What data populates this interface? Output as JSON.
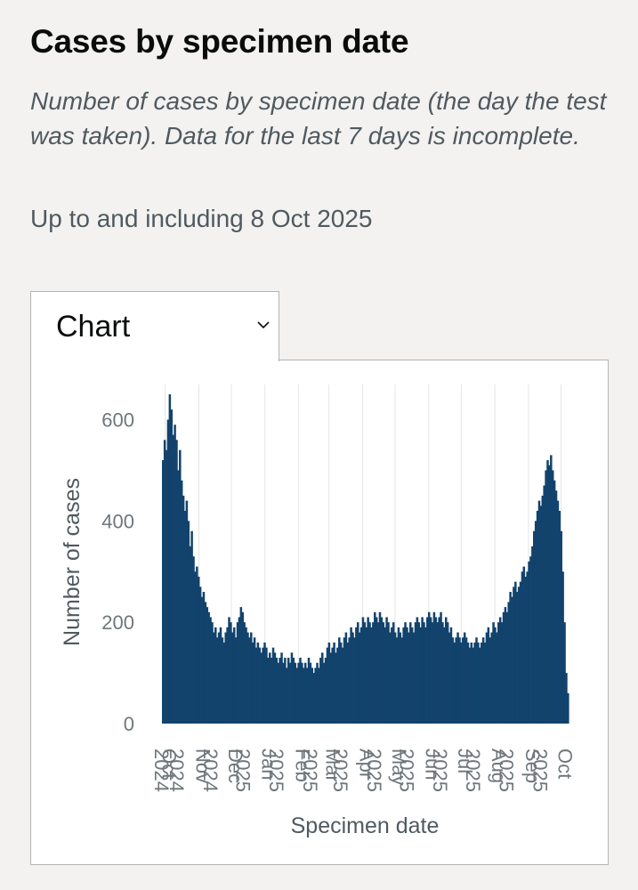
{
  "header": {
    "title": "Cases by specimen date",
    "description": "Number of cases by specimen date (the day the test was taken). Data for the last 7 days is incomplete.",
    "updated": "Up to and including 8 Oct 2025"
  },
  "view_selector": {
    "selected": "Chart",
    "icon": "chevron-down-icon"
  },
  "colors": {
    "bar": "#12436d",
    "grid": "#e5e5e5",
    "tick": "#6f777b"
  },
  "chart_data": {
    "type": "bar",
    "xlabel": "Specimen date",
    "ylabel": "Number of cases",
    "ylim": [
      0,
      680
    ],
    "yticks": [
      0,
      200,
      400,
      600
    ],
    "x_range": [
      "2024-09-28",
      "2025-10-08"
    ],
    "xtick_labels": [
      {
        "date": "2024-09-28",
        "label": "2024"
      },
      {
        "date": "2024-10-05",
        "label": "Oct"
      },
      {
        "date": "2024-10-12",
        "label": "2024"
      },
      {
        "date": "2024-11-05",
        "label": "Nov"
      },
      {
        "date": "2024-11-12",
        "label": "2024"
      },
      {
        "date": "2024-12-05",
        "label": "Dec"
      },
      {
        "date": "2024-12-12",
        "label": "2025"
      },
      {
        "date": "2025-01-05",
        "label": "Jan"
      },
      {
        "date": "2025-01-12",
        "label": "2025"
      },
      {
        "date": "2025-02-05",
        "label": "Feb"
      },
      {
        "date": "2025-02-12",
        "label": "2025"
      },
      {
        "date": "2025-03-05",
        "label": "Mar"
      },
      {
        "date": "2025-03-12",
        "label": "2025"
      },
      {
        "date": "2025-04-05",
        "label": "Apr"
      },
      {
        "date": "2025-04-12",
        "label": "2025"
      },
      {
        "date": "2025-05-05",
        "label": "May"
      },
      {
        "date": "2025-05-12",
        "label": "2025"
      },
      {
        "date": "2025-06-05",
        "label": "Jun"
      },
      {
        "date": "2025-06-12",
        "label": "2025"
      },
      {
        "date": "2025-07-05",
        "label": "Jul"
      },
      {
        "date": "2025-07-12",
        "label": "2025"
      },
      {
        "date": "2025-08-05",
        "label": "Aug"
      },
      {
        "date": "2025-08-12",
        "label": "2025"
      },
      {
        "date": "2025-09-05",
        "label": "Sep"
      },
      {
        "date": "2025-09-12",
        "label": "2025"
      },
      {
        "date": "2025-10-05",
        "label": "Oct"
      }
    ],
    "daily_values": [
      520,
      560,
      540,
      600,
      650,
      620,
      570,
      590,
      560,
      500,
      540,
      480,
      450,
      420,
      440,
      400,
      350,
      380,
      330,
      300,
      310,
      290,
      270,
      250,
      260,
      240,
      230,
      220,
      210,
      200,
      180,
      190,
      170,
      180,
      190,
      170,
      160,
      180,
      190,
      210,
      200,
      180,
      190,
      170,
      200,
      210,
      230,
      220,
      200,
      190,
      180,
      170,
      180,
      160,
      170,
      150,
      160,
      150,
      140,
      150,
      160,
      150,
      130,
      140,
      130,
      150,
      140,
      130,
      120,
      130,
      140,
      120,
      130,
      110,
      130,
      120,
      140,
      130,
      120,
      110,
      120,
      130,
      120,
      110,
      120,
      110,
      130,
      120,
      110,
      100,
      110,
      120,
      110,
      130,
      140,
      120,
      130,
      150,
      160,
      140,
      150,
      160,
      140,
      150,
      170,
      160,
      150,
      170,
      180,
      160,
      170,
      190,
      180,
      170,
      190,
      200,
      180,
      190,
      210,
      200,
      190,
      210,
      200,
      190,
      200,
      220,
      210,
      200,
      220,
      210,
      200,
      190,
      210,
      200,
      180,
      190,
      200,
      180,
      170,
      190,
      180,
      170,
      190,
      200,
      190,
      180,
      200,
      190,
      180,
      200,
      210,
      200,
      190,
      210,
      200,
      190,
      210,
      220,
      210,
      200,
      220,
      210,
      200,
      210,
      220,
      200,
      190,
      210,
      200,
      180,
      190,
      170,
      160,
      170,
      180,
      170,
      160,
      170,
      180,
      170,
      160,
      150,
      160,
      150,
      160,
      170,
      160,
      150,
      160,
      170,
      160,
      180,
      190,
      170,
      180,
      200,
      190,
      180,
      200,
      210,
      200,
      220,
      230,
      220,
      240,
      260,
      250,
      270,
      280,
      260,
      270,
      280,
      300,
      310,
      290,
      300,
      320,
      330,
      350,
      380,
      400,
      420,
      440,
      430,
      450,
      470,
      500,
      520,
      510,
      530,
      500,
      480,
      460,
      440,
      420,
      380,
      300,
      200,
      100,
      60
    ]
  }
}
